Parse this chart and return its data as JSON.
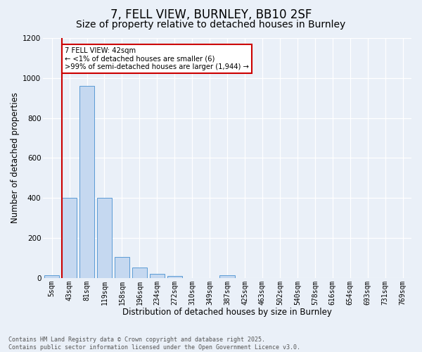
{
  "title1": "7, FELL VIEW, BURNLEY, BB10 2SF",
  "title2": "Size of property relative to detached houses in Burnley",
  "xlabel": "Distribution of detached houses by size in Burnley",
  "ylabel": "Number of detached properties",
  "categories": [
    "5sqm",
    "43sqm",
    "81sqm",
    "119sqm",
    "158sqm",
    "196sqm",
    "234sqm",
    "272sqm",
    "310sqm",
    "349sqm",
    "387sqm",
    "425sqm",
    "463sqm",
    "502sqm",
    "540sqm",
    "578sqm",
    "616sqm",
    "654sqm",
    "693sqm",
    "731sqm",
    "769sqm"
  ],
  "values": [
    12,
    400,
    960,
    400,
    105,
    52,
    20,
    10,
    0,
    0,
    12,
    0,
    0,
    0,
    0,
    0,
    0,
    0,
    0,
    0,
    0
  ],
  "bar_color": "#c5d8f0",
  "bar_edge_color": "#5b9bd5",
  "vline_color": "#cc0000",
  "annotation_title": "7 FELL VIEW: 42sqm",
  "annotation_line1": "← <1% of detached houses are smaller (6)",
  "annotation_line2": ">99% of semi-detached houses are larger (1,944) →",
  "annotation_box_color": "#cc0000",
  "ylim": [
    0,
    1200
  ],
  "yticks": [
    0,
    200,
    400,
    600,
    800,
    1000,
    1200
  ],
  "footer": "Contains HM Land Registry data © Crown copyright and database right 2025.\nContains public sector information licensed under the Open Government Licence v3.0.",
  "bg_color": "#eaf0f8",
  "plot_bg_color": "#eaf0f8",
  "grid_color": "#ffffff",
  "title1_fontsize": 12,
  "title2_fontsize": 10,
  "tick_fontsize": 7,
  "label_fontsize": 8.5,
  "footer_fontsize": 6
}
